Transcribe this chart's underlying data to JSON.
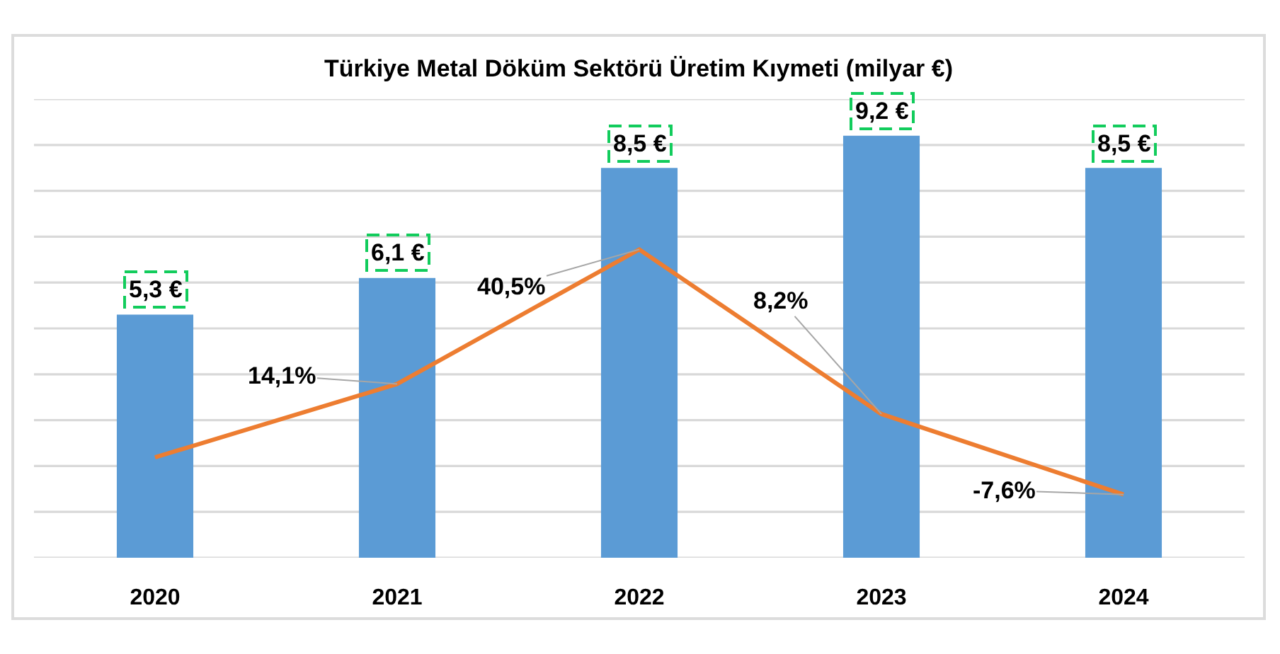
{
  "chart_data": {
    "type": "bar",
    "title": "Türkiye Metal Döküm Sektörü Üretim Kıymeti (milyar €)",
    "categories": [
      "2020",
      "2021",
      "2022",
      "2023",
      "2024"
    ],
    "series": [
      {
        "color": "#5b9bd5",
        "values": [
          5.3,
          6.1,
          8.5,
          9.2,
          8.5
        ],
        "value_labels": [
          "5,3 €",
          "6,1 €",
          "8,5 €",
          "9,2 €",
          "8,5 €"
        ]
      },
      {
        "type": "line",
        "axis": "y2",
        "color": "#ed7d31",
        "values": [
          -0.3,
          14.1,
          40.5,
          8.2,
          -7.6
        ],
        "value_labels": [
          null,
          "14,1%",
          "40,5%",
          "8,2%",
          "-7,6%"
        ]
      }
    ],
    "ylim": [
      0,
      10
    ],
    "yticks": [
      {
        "value": 0,
        "label": null
      },
      {
        "value": 1,
        "label": null
      },
      {
        "value": 2,
        "label": null
      },
      {
        "value": 3,
        "label": null
      },
      {
        "value": 4,
        "label": null
      },
      {
        "value": 5,
        "label": null
      },
      {
        "value": 6,
        "label": null
      },
      {
        "value": 7,
        "label": null
      },
      {
        "value": 8,
        "label": null
      },
      {
        "value": 9,
        "label": null
      },
      {
        "value": 10,
        "label": null
      }
    ],
    "y2lim": [
      -20,
      70
    ],
    "grid": "y",
    "tick_labels": "x"
  }
}
